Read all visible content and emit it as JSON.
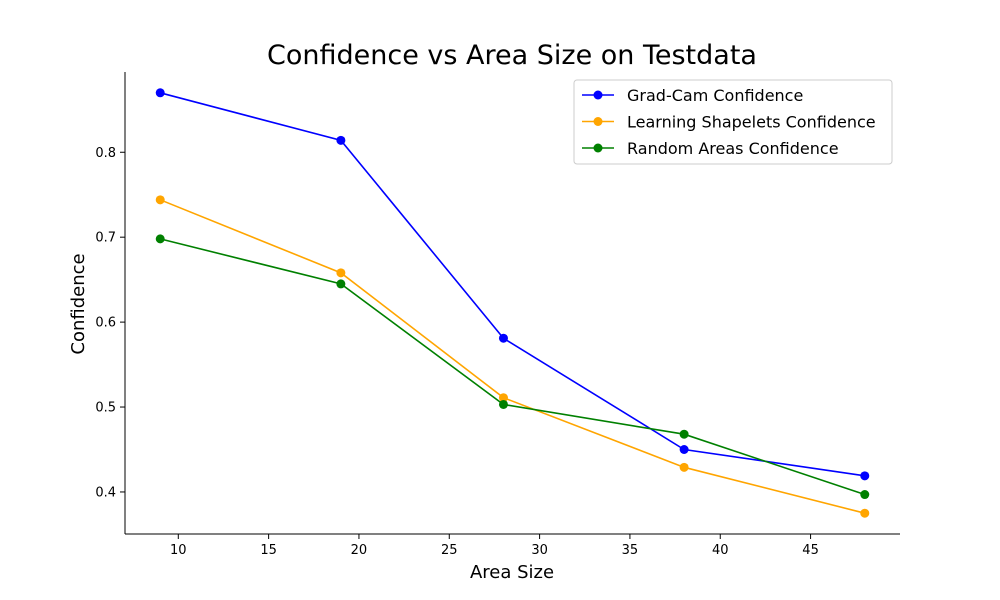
{
  "chart_data": {
    "type": "line",
    "title": "Confidence vs Area Size on Testdata",
    "xlabel": "Area Size",
    "ylabel": "Confidence",
    "xlim": [
      7.05,
      49.95
    ],
    "ylim": [
      0.3505,
      0.8945
    ],
    "xticks": [
      10,
      15,
      20,
      25,
      30,
      35,
      40,
      45
    ],
    "yticks": [
      0.4,
      0.5,
      0.6,
      0.7,
      0.8
    ],
    "x": [
      9,
      19,
      28,
      38,
      48
    ],
    "grid": false,
    "legend_position": "top-right",
    "series": [
      {
        "name": "Grad-Cam Confidence",
        "color": "#0000ff",
        "values": [
          0.87,
          0.814,
          0.581,
          0.45,
          0.419
        ]
      },
      {
        "name": "Learning Shapelets Confidence",
        "color": "#ffa500",
        "values": [
          0.744,
          0.658,
          0.511,
          0.429,
          0.375
        ]
      },
      {
        "name": "Random Areas Confidence",
        "color": "#008000",
        "values": [
          0.698,
          0.645,
          0.503,
          0.468,
          0.397
        ]
      }
    ]
  }
}
